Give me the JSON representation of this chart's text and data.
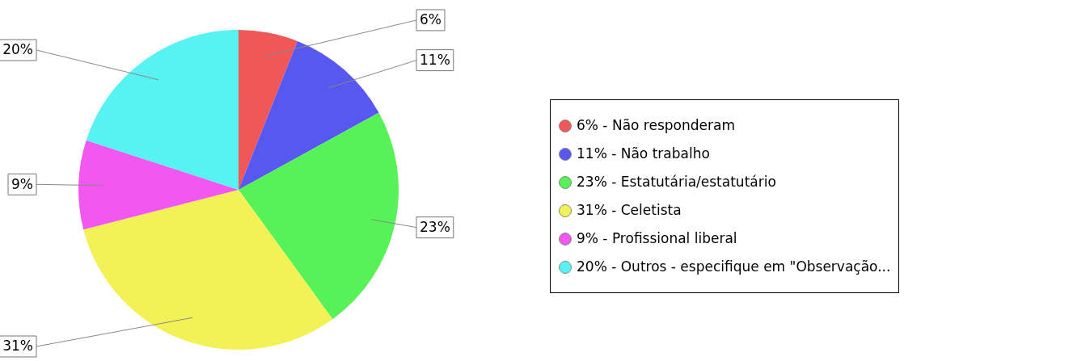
{
  "chart_data": {
    "type": "pie",
    "categories": [
      "6% - Não responderam",
      "11% - Não trabalho",
      "23% - Estatutária/estatutário",
      "31% - Celetista",
      "9% - Profissional liberal",
      "20% - Outros - especifique em \"Observação..."
    ],
    "values": [
      6,
      11,
      23,
      31,
      9,
      20
    ],
    "value_labels": [
      "6%",
      "11%",
      "23%",
      "31%",
      "9%",
      "20%"
    ],
    "colors": [
      "#f25757",
      "#5757f2",
      "#57f257",
      "#f2f257",
      "#f257f2",
      "#57f2f2"
    ],
    "legend": "right"
  }
}
